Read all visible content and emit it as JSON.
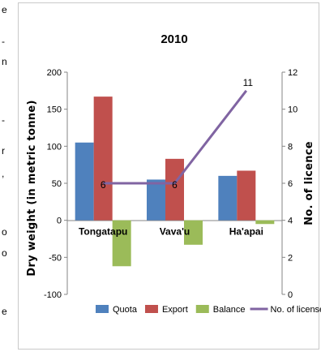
{
  "chart_data": {
    "type": "bar",
    "title": "2010",
    "ylabel": "Dry weight (in metric tonne)",
    "y2label": "No. of licence",
    "categories": [
      "Tongatapu",
      "Vava'u",
      "Ha'apai"
    ],
    "ylim": [
      -100,
      200
    ],
    "y_ticks": [
      "200",
      "150",
      "100",
      "50",
      "0",
      "-50",
      "-100"
    ],
    "y2lim": [
      0,
      12
    ],
    "y2_ticks": [
      "12",
      "10",
      "8",
      "6",
      "4",
      "2",
      "0"
    ],
    "series": [
      {
        "name": "Quota",
        "type": "bar",
        "color": "#4f81bd",
        "values": [
          105,
          55,
          60
        ]
      },
      {
        "name": "Export",
        "type": "bar",
        "color": "#c0504d",
        "values": [
          167,
          83,
          67
        ]
      },
      {
        "name": "Balance",
        "type": "bar",
        "color": "#9bbb59",
        "values": [
          -62,
          -33,
          -5
        ]
      },
      {
        "name": "No. of license",
        "type": "line",
        "axis": "secondary",
        "color": "#8064a2",
        "values": [
          6,
          6,
          11
        ],
        "labels": [
          "6",
          "6",
          "11"
        ]
      }
    ],
    "legend": "bottom",
    "grid": false
  }
}
